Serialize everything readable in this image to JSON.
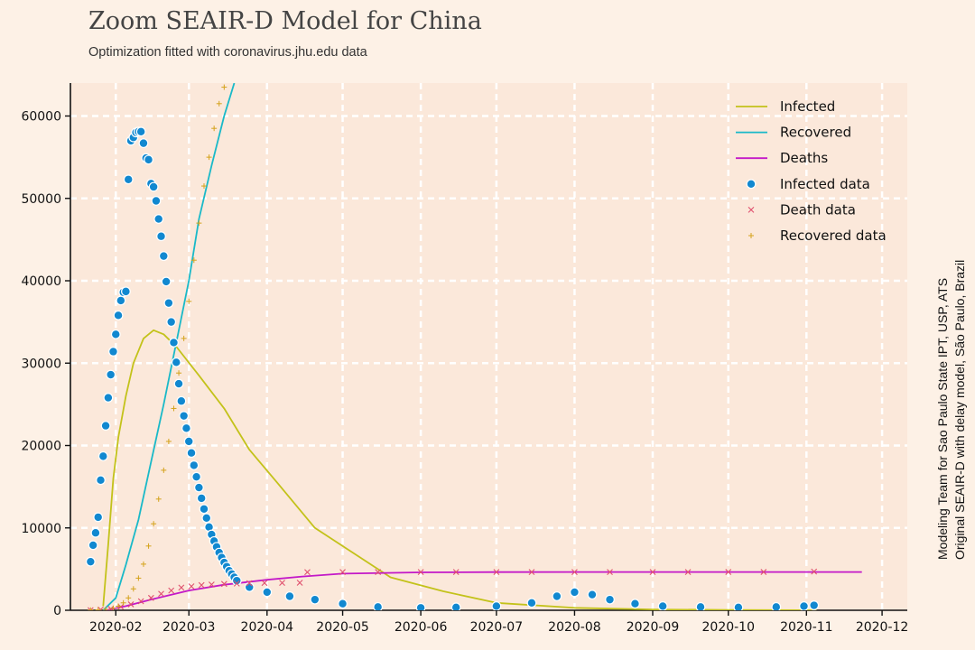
{
  "header": {
    "title": "Zoom SEAIR-D Model for China",
    "subtitle": "Optimization fitted with coronavirus.jhu.edu data"
  },
  "side_note": {
    "line1": "Modeling Team for Sao Paulo State IPT, USP, ATS",
    "line2": "Original SEAIR-D with delay model, São Paulo, Brazil"
  },
  "colors": {
    "background": "#fdf1e6",
    "plot_background": "#fbe8da",
    "grid": "#ffffff",
    "infected_line": "#c3c21a",
    "recovered_line": "#19b9c8",
    "deaths_line": "#c319c8",
    "infected_data": "#1188d0",
    "death_data": "#e0506e",
    "recovered_data": "#d4a21a"
  },
  "chart_data": {
    "type": "line",
    "title": "Zoom SEAIR-D Model for China",
    "subtitle": "Optimization fitted with coronavirus.jhu.edu data",
    "xlabel": "",
    "ylabel": "",
    "x_type": "date",
    "xlim": [
      "2020-01-14",
      "2020-12-11"
    ],
    "ylim": [
      0,
      64000
    ],
    "x_ticks": [
      "2020-02-01",
      "2020-03-01",
      "2020-04-01",
      "2020-05-01",
      "2020-06-01",
      "2020-07-01",
      "2020-08-01",
      "2020-09-01",
      "2020-10-01",
      "2020-11-01",
      "2020-12-01"
    ],
    "x_tick_labels": [
      "2020-02",
      "2020-03",
      "2020-04",
      "2020-05",
      "2020-06",
      "2020-07",
      "2020-08",
      "2020-09",
      "2020-10",
      "2020-11",
      "2020-12"
    ],
    "y_ticks": [
      0,
      10000,
      20000,
      30000,
      40000,
      50000,
      60000
    ],
    "y_tick_labels": [
      "0",
      "10000",
      "20000",
      "30000",
      "40000",
      "50000",
      "60000"
    ],
    "grid": true,
    "legend_position": "top-right",
    "series": [
      {
        "name": "Infected",
        "kind": "line",
        "points": [
          [
            "2020-01-27",
            500
          ],
          [
            "2020-01-29",
            8000
          ],
          [
            "2020-01-31",
            16000
          ],
          [
            "2020-02-02",
            21000
          ],
          [
            "2020-02-05",
            26000
          ],
          [
            "2020-02-08",
            30000
          ],
          [
            "2020-02-12",
            33000
          ],
          [
            "2020-02-16",
            34000
          ],
          [
            "2020-02-20",
            33500
          ],
          [
            "2020-02-25",
            32000
          ],
          [
            "2020-03-05",
            28500
          ],
          [
            "2020-03-15",
            24500
          ],
          [
            "2020-03-25",
            19500
          ],
          [
            "2020-04-05",
            15500
          ],
          [
            "2020-04-20",
            10000
          ],
          [
            "2020-05-05",
            7000
          ],
          [
            "2020-05-20",
            4000
          ],
          [
            "2020-06-10",
            2300
          ],
          [
            "2020-07-01",
            900
          ],
          [
            "2020-08-01",
            300
          ],
          [
            "2020-09-01",
            100
          ],
          [
            "2020-10-01",
            40
          ],
          [
            "2020-11-05",
            10
          ]
        ]
      },
      {
        "name": "Recovered",
        "kind": "line",
        "points": [
          [
            "2020-01-27",
            0
          ],
          [
            "2020-02-01",
            1500
          ],
          [
            "2020-02-05",
            5500
          ],
          [
            "2020-02-10",
            11000
          ],
          [
            "2020-02-15",
            18000
          ],
          [
            "2020-02-20",
            25000
          ],
          [
            "2020-02-25",
            32500
          ],
          [
            "2020-03-01",
            40000
          ],
          [
            "2020-03-05",
            47500
          ],
          [
            "2020-03-10",
            54000
          ],
          [
            "2020-03-15",
            60000
          ],
          [
            "2020-03-19",
            64000
          ]
        ]
      },
      {
        "name": "Deaths",
        "kind": "line",
        "points": [
          [
            "2020-01-28",
            0
          ],
          [
            "2020-02-05",
            500
          ],
          [
            "2020-02-15",
            1300
          ],
          [
            "2020-03-01",
            2400
          ],
          [
            "2020-03-15",
            3100
          ],
          [
            "2020-04-01",
            3700
          ],
          [
            "2020-04-15",
            4100
          ],
          [
            "2020-05-01",
            4450
          ],
          [
            "2020-06-01",
            4600
          ],
          [
            "2020-07-01",
            4640
          ],
          [
            "2020-08-01",
            4650
          ],
          [
            "2020-09-01",
            4650
          ],
          [
            "2020-10-01",
            4650
          ],
          [
            "2020-11-23",
            4650
          ]
        ]
      },
      {
        "name": "Infected data",
        "kind": "scatter",
        "points": [
          [
            "2020-01-22",
            5900
          ],
          [
            "2020-01-23",
            7900
          ],
          [
            "2020-01-24",
            9400
          ],
          [
            "2020-01-25",
            11300
          ],
          [
            "2020-01-26",
            15800
          ],
          [
            "2020-01-27",
            18700
          ],
          [
            "2020-01-28",
            22400
          ],
          [
            "2020-01-29",
            25800
          ],
          [
            "2020-01-30",
            28600
          ],
          [
            "2020-01-31",
            31400
          ],
          [
            "2020-02-01",
            33500
          ],
          [
            "2020-02-02",
            35800
          ],
          [
            "2020-02-03",
            37600
          ],
          [
            "2020-02-04",
            38600
          ],
          [
            "2020-02-05",
            38700
          ],
          [
            "2020-02-06",
            52300
          ],
          [
            "2020-02-07",
            57000
          ],
          [
            "2020-02-08",
            57400
          ],
          [
            "2020-02-09",
            58000
          ],
          [
            "2020-02-10",
            58100
          ],
          [
            "2020-02-11",
            58100
          ],
          [
            "2020-02-12",
            56700
          ],
          [
            "2020-02-13",
            54900
          ],
          [
            "2020-02-14",
            54700
          ],
          [
            "2020-02-15",
            51800
          ],
          [
            "2020-02-16",
            51400
          ],
          [
            "2020-02-17",
            49700
          ],
          [
            "2020-02-18",
            47500
          ],
          [
            "2020-02-19",
            45400
          ],
          [
            "2020-02-20",
            43000
          ],
          [
            "2020-02-21",
            39900
          ],
          [
            "2020-02-22",
            37300
          ],
          [
            "2020-02-23",
            35000
          ],
          [
            "2020-02-24",
            32500
          ],
          [
            "2020-02-25",
            30100
          ],
          [
            "2020-02-26",
            27500
          ],
          [
            "2020-02-27",
            25400
          ],
          [
            "2020-02-28",
            23600
          ],
          [
            "2020-02-29",
            22100
          ],
          [
            "2020-03-01",
            20500
          ],
          [
            "2020-03-02",
            19100
          ],
          [
            "2020-03-03",
            17600
          ],
          [
            "2020-03-04",
            16200
          ],
          [
            "2020-03-05",
            14900
          ],
          [
            "2020-03-06",
            13600
          ],
          [
            "2020-03-07",
            12300
          ],
          [
            "2020-03-08",
            11200
          ],
          [
            "2020-03-09",
            10100
          ],
          [
            "2020-03-10",
            9200
          ],
          [
            "2020-03-11",
            8400
          ],
          [
            "2020-03-12",
            7700
          ],
          [
            "2020-03-13",
            7000
          ],
          [
            "2020-03-14",
            6400
          ],
          [
            "2020-03-15",
            5800
          ],
          [
            "2020-03-16",
            5300
          ],
          [
            "2020-03-17",
            4800
          ],
          [
            "2020-03-18",
            4400
          ],
          [
            "2020-03-19",
            4000
          ],
          [
            "2020-03-20",
            3600
          ],
          [
            "2020-03-25",
            2800
          ],
          [
            "2020-04-01",
            2200
          ],
          [
            "2020-04-10",
            1700
          ],
          [
            "2020-04-20",
            1300
          ],
          [
            "2020-05-01",
            800
          ],
          [
            "2020-05-15",
            400
          ],
          [
            "2020-06-01",
            300
          ],
          [
            "2020-06-15",
            350
          ],
          [
            "2020-07-01",
            500
          ],
          [
            "2020-07-15",
            900
          ],
          [
            "2020-07-25",
            1700
          ],
          [
            "2020-08-01",
            2200
          ],
          [
            "2020-08-08",
            1900
          ],
          [
            "2020-08-15",
            1300
          ],
          [
            "2020-08-25",
            800
          ],
          [
            "2020-09-05",
            500
          ],
          [
            "2020-09-20",
            400
          ],
          [
            "2020-10-05",
            350
          ],
          [
            "2020-10-20",
            400
          ],
          [
            "2020-10-31",
            500
          ],
          [
            "2020-11-04",
            600
          ]
        ]
      },
      {
        "name": "Death data",
        "kind": "scatter",
        "points": [
          [
            "2020-01-22",
            17
          ],
          [
            "2020-01-26",
            80
          ],
          [
            "2020-01-30",
            170
          ],
          [
            "2020-02-03",
            425
          ],
          [
            "2020-02-07",
            720
          ],
          [
            "2020-02-11",
            1100
          ],
          [
            "2020-02-15",
            1500
          ],
          [
            "2020-02-19",
            2000
          ],
          [
            "2020-02-23",
            2400
          ],
          [
            "2020-02-27",
            2750
          ],
          [
            "2020-03-02",
            2900
          ],
          [
            "2020-03-06",
            3050
          ],
          [
            "2020-03-10",
            3120
          ],
          [
            "2020-03-15",
            3200
          ],
          [
            "2020-03-20",
            3250
          ],
          [
            "2020-03-25",
            3290
          ],
          [
            "2020-03-31",
            3310
          ],
          [
            "2020-04-07",
            3330
          ],
          [
            "2020-04-14",
            3340
          ],
          [
            "2020-04-17",
            4630
          ],
          [
            "2020-05-01",
            4640
          ],
          [
            "2020-05-15",
            4640
          ],
          [
            "2020-06-01",
            4640
          ],
          [
            "2020-06-15",
            4640
          ],
          [
            "2020-07-01",
            4640
          ],
          [
            "2020-07-15",
            4640
          ],
          [
            "2020-08-01",
            4640
          ],
          [
            "2020-08-15",
            4640
          ],
          [
            "2020-09-01",
            4640
          ],
          [
            "2020-09-15",
            4640
          ],
          [
            "2020-10-01",
            4650
          ],
          [
            "2020-10-15",
            4650
          ],
          [
            "2020-11-04",
            4700
          ]
        ]
      },
      {
        "name": "Recovered data",
        "kind": "scatter",
        "points": [
          [
            "2020-01-22",
            28
          ],
          [
            "2020-01-25",
            40
          ],
          [
            "2020-01-28",
            110
          ],
          [
            "2020-01-31",
            250
          ],
          [
            "2020-02-02",
            500
          ],
          [
            "2020-02-04",
            900
          ],
          [
            "2020-02-06",
            1500
          ],
          [
            "2020-02-08",
            2600
          ],
          [
            "2020-02-10",
            3900
          ],
          [
            "2020-02-12",
            5600
          ],
          [
            "2020-02-14",
            7800
          ],
          [
            "2020-02-16",
            10500
          ],
          [
            "2020-02-18",
            13500
          ],
          [
            "2020-02-20",
            17000
          ],
          [
            "2020-02-22",
            20500
          ],
          [
            "2020-02-24",
            24500
          ],
          [
            "2020-02-26",
            28800
          ],
          [
            "2020-02-28",
            33000
          ],
          [
            "2020-03-01",
            37500
          ],
          [
            "2020-03-03",
            42500
          ],
          [
            "2020-03-05",
            47000
          ],
          [
            "2020-03-07",
            51500
          ],
          [
            "2020-03-09",
            55000
          ],
          [
            "2020-03-11",
            58500
          ],
          [
            "2020-03-13",
            61500
          ],
          [
            "2020-03-15",
            63500
          ]
        ]
      }
    ]
  }
}
